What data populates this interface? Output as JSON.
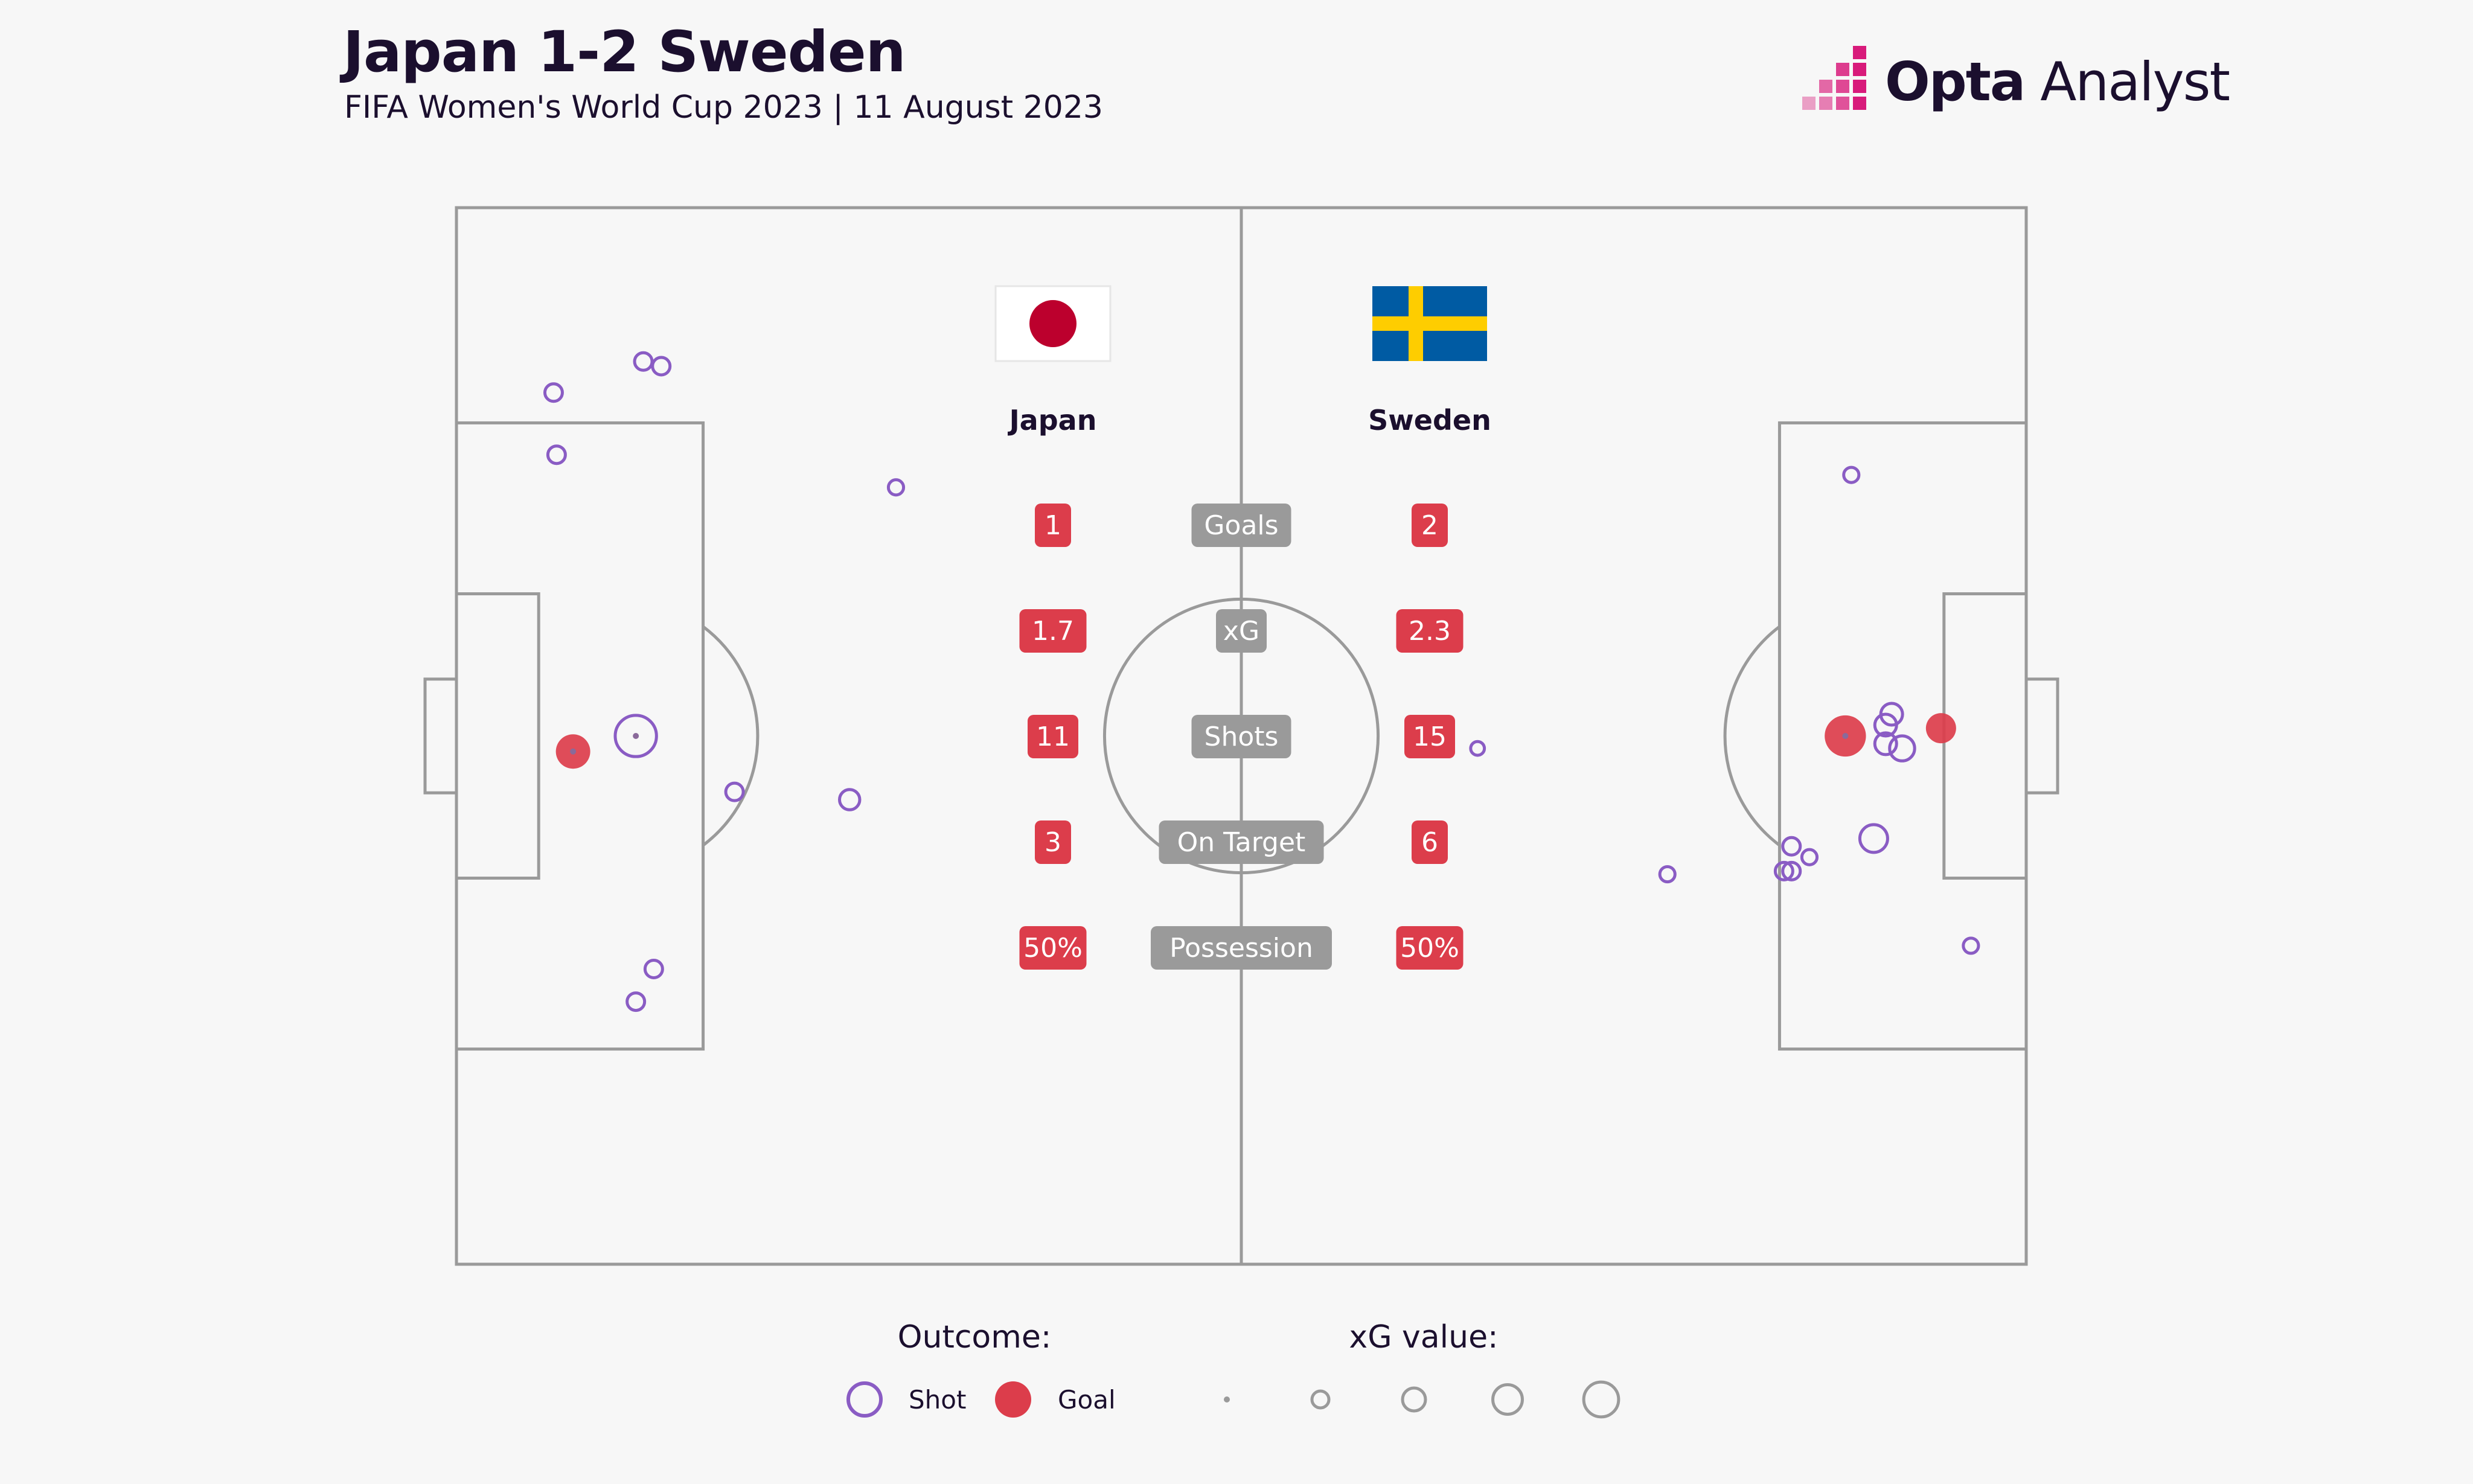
{
  "header": {
    "title": "Japan 1-2 Sweden",
    "subtitle": "FIFA Women's World Cup 2023 | 11 August 2023",
    "logo_bold": "Opta",
    "logo_normal": " Analyst"
  },
  "colors": {
    "background": "#f7f7f7",
    "pitch_lines": "#9a9a9a",
    "shot": "#8a5cc4",
    "goal": "#dc3d4b",
    "stat_value_bg": "#dc3d4b",
    "stat_label_bg": "#9a9a9a",
    "title": "#1b0f2e",
    "logo_accent": "#d81b7b"
  },
  "teams": {
    "home": {
      "name": "Japan",
      "flag": "japan-flag-icon"
    },
    "away": {
      "name": "Sweden",
      "flag": "sweden-flag-icon"
    }
  },
  "stats": [
    {
      "label": "Goals",
      "home": "1",
      "away": "2"
    },
    {
      "label": "xG",
      "home": "1.7",
      "away": "2.3"
    },
    {
      "label": "Shots",
      "home": "11",
      "away": "15"
    },
    {
      "label": "On Target",
      "home": "3",
      "away": "6"
    },
    {
      "label": "Possession",
      "home": "50%",
      "away": "50%"
    }
  ],
  "legend": {
    "outcome_title": "Outcome:",
    "shot_label": "Shot",
    "goal_label": "Goal",
    "xg_title": "xG value:",
    "xg_scale": [
      0.01,
      0.1,
      0.2,
      0.35,
      0.5
    ]
  },
  "chart_data": {
    "type": "scatter",
    "pitch": {
      "length_m": 105,
      "width_m": 68
    },
    "series": [
      {
        "name": "Japan",
        "attacking_goal": "left",
        "shots": [
          {
            "x": 6.5,
            "y": 11.9,
            "xg": 0.05,
            "outcome": "shot"
          },
          {
            "x": 12.5,
            "y": 9.9,
            "xg": 0.05,
            "outcome": "shot"
          },
          {
            "x": 13.7,
            "y": 10.2,
            "xg": 0.05,
            "outcome": "shot"
          },
          {
            "x": 6.7,
            "y": 15.9,
            "xg": 0.05,
            "outcome": "shot"
          },
          {
            "x": 29.4,
            "y": 18.0,
            "xg": 0.03,
            "outcome": "shot"
          },
          {
            "x": 12.0,
            "y": 34.0,
            "xg": 0.55,
            "outcome": "shot"
          },
          {
            "x": 7.8,
            "y": 35.0,
            "xg": 0.35,
            "outcome": "goal"
          },
          {
            "x": 18.6,
            "y": 37.6,
            "xg": 0.05,
            "outcome": "shot"
          },
          {
            "x": 26.3,
            "y": 38.1,
            "xg": 0.08,
            "outcome": "shot"
          },
          {
            "x": 13.2,
            "y": 49.0,
            "xg": 0.05,
            "outcome": "shot"
          },
          {
            "x": 12.0,
            "y": 51.1,
            "xg": 0.05,
            "outcome": "shot"
          }
        ]
      },
      {
        "name": "Sweden",
        "attacking_goal": "right",
        "shots": [
          {
            "x": 93.3,
            "y": 17.2,
            "xg": 0.03,
            "outcome": "shot"
          },
          {
            "x": 96.0,
            "y": 32.6,
            "xg": 0.1,
            "outcome": "shot"
          },
          {
            "x": 95.6,
            "y": 33.3,
            "xg": 0.1,
            "outcome": "shot"
          },
          {
            "x": 99.3,
            "y": 33.5,
            "xg": 0.25,
            "outcome": "goal"
          },
          {
            "x": 92.9,
            "y": 34.0,
            "xg": 0.55,
            "outcome": "goal"
          },
          {
            "x": 95.6,
            "y": 34.5,
            "xg": 0.1,
            "outcome": "shot"
          },
          {
            "x": 96.7,
            "y": 34.8,
            "xg": 0.15,
            "outcome": "shot"
          },
          {
            "x": 68.3,
            "y": 34.8,
            "xg": 0.02,
            "outcome": "shot"
          },
          {
            "x": 94.8,
            "y": 40.6,
            "xg": 0.2,
            "outcome": "shot"
          },
          {
            "x": 89.3,
            "y": 41.1,
            "xg": 0.05,
            "outcome": "shot"
          },
          {
            "x": 90.5,
            "y": 41.8,
            "xg": 0.03,
            "outcome": "shot"
          },
          {
            "x": 88.8,
            "y": 42.7,
            "xg": 0.05,
            "outcome": "shot"
          },
          {
            "x": 89.3,
            "y": 42.7,
            "xg": 0.05,
            "outcome": "shot"
          },
          {
            "x": 81.0,
            "y": 42.9,
            "xg": 0.03,
            "outcome": "shot"
          },
          {
            "x": 101.3,
            "y": 47.5,
            "xg": 0.03,
            "outcome": "shot"
          }
        ]
      }
    ]
  }
}
